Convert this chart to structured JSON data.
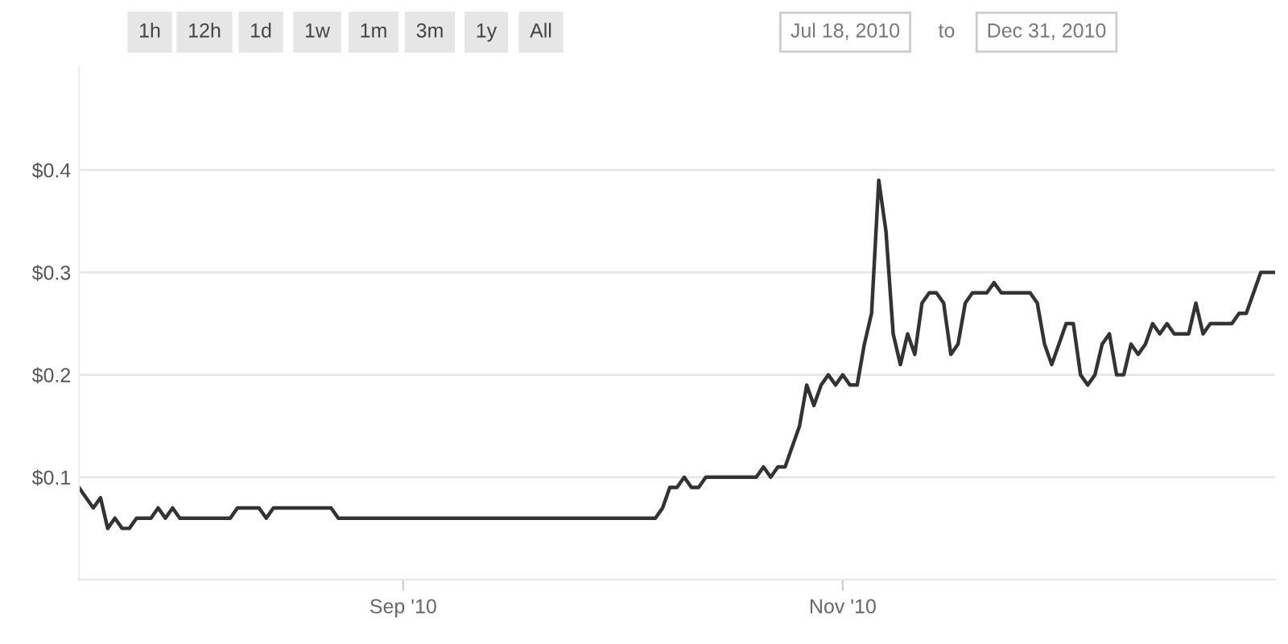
{
  "chart_data": {
    "type": "line",
    "annotations": [
      "1h",
      "12h",
      "1d",
      "1w",
      "1m",
      "3m",
      "1y",
      "All",
      "Jul 18, 2010",
      "to",
      "Dec 31, 2010"
    ],
    "x": [
      "2010-07-18",
      "2010-07-20",
      "2010-07-21",
      "2010-07-22",
      "2010-07-23",
      "2010-07-24",
      "2010-07-25",
      "2010-07-26",
      "2010-07-28",
      "2010-07-29",
      "2010-07-30",
      "2010-07-31",
      "2010-08-01",
      "2010-08-08",
      "2010-08-09",
      "2010-08-12",
      "2010-08-13",
      "2010-08-14",
      "2010-08-22",
      "2010-08-23",
      "2010-10-06",
      "2010-10-07",
      "2010-10-08",
      "2010-10-09",
      "2010-10-10",
      "2010-10-11",
      "2010-10-12",
      "2010-10-13",
      "2010-10-20",
      "2010-10-21",
      "2010-10-22",
      "2010-10-23",
      "2010-10-24",
      "2010-10-26",
      "2010-10-27",
      "2010-10-28",
      "2010-10-29",
      "2010-10-30",
      "2010-10-31",
      "2010-11-01",
      "2010-11-02",
      "2010-11-03",
      "2010-11-04",
      "2010-11-05",
      "2010-11-06",
      "2010-11-07",
      "2010-11-08",
      "2010-11-09",
      "2010-11-10",
      "2010-11-11",
      "2010-11-12",
      "2010-11-13",
      "2010-11-14",
      "2010-11-15",
      "2010-11-16",
      "2010-11-17",
      "2010-11-18",
      "2010-11-19",
      "2010-11-21",
      "2010-11-22",
      "2010-11-23",
      "2010-11-27",
      "2010-11-28",
      "2010-11-29",
      "2010-11-30",
      "2010-12-01",
      "2010-12-02",
      "2010-12-03",
      "2010-12-04",
      "2010-12-05",
      "2010-12-06",
      "2010-12-07",
      "2010-12-08",
      "2010-12-09",
      "2010-12-10",
      "2010-12-11",
      "2010-12-12",
      "2010-12-13",
      "2010-12-14",
      "2010-12-15",
      "2010-12-16",
      "2010-12-17",
      "2010-12-19",
      "2010-12-20",
      "2010-12-21",
      "2010-12-22",
      "2010-12-25",
      "2010-12-26",
      "2010-12-27",
      "2010-12-29",
      "2010-12-31"
    ],
    "series": [
      {
        "color": "#333333",
        "values": [
          0.09,
          0.07,
          0.08,
          0.05,
          0.06,
          0.05,
          0.05,
          0.06,
          0.06,
          0.07,
          0.06,
          0.07,
          0.06,
          0.06,
          0.07,
          0.07,
          0.06,
          0.07,
          0.07,
          0.06,
          0.06,
          0.07,
          0.09,
          0.09,
          0.1,
          0.09,
          0.09,
          0.1,
          0.1,
          0.11,
          0.1,
          0.11,
          0.11,
          0.15,
          0.19,
          0.17,
          0.19,
          0.2,
          0.19,
          0.2,
          0.19,
          0.19,
          0.23,
          0.26,
          0.39,
          0.34,
          0.24,
          0.21,
          0.24,
          0.22,
          0.27,
          0.28,
          0.28,
          0.27,
          0.22,
          0.23,
          0.27,
          0.28,
          0.28,
          0.29,
          0.28,
          0.28,
          0.27,
          0.23,
          0.21,
          0.23,
          0.25,
          0.25,
          0.2,
          0.19,
          0.2,
          0.23,
          0.24,
          0.2,
          0.2,
          0.23,
          0.22,
          0.23,
          0.25,
          0.24,
          0.25,
          0.24,
          0.24,
          0.27,
          0.24,
          0.25,
          0.25,
          0.26,
          0.26,
          0.3,
          0.3
        ]
      }
    ],
    "xlim": [
      "2010-07-18",
      "2010-12-31"
    ],
    "xticks": [
      {
        "value": "2010-09-01",
        "label": "Sep '10"
      },
      {
        "value": "2010-11-01",
        "label": "Nov '10"
      }
    ],
    "ylim": [
      0,
      0.5
    ],
    "yticks": [
      {
        "value": 0.1,
        "label": "$0.1"
      },
      {
        "value": 0.2,
        "label": "$0.2"
      },
      {
        "value": 0.3,
        "label": "$0.3"
      },
      {
        "value": 0.4,
        "label": "$0.4"
      }
    ],
    "grid": "y",
    "legend": false,
    "marker": "none",
    "line_style": "solid"
  }
}
